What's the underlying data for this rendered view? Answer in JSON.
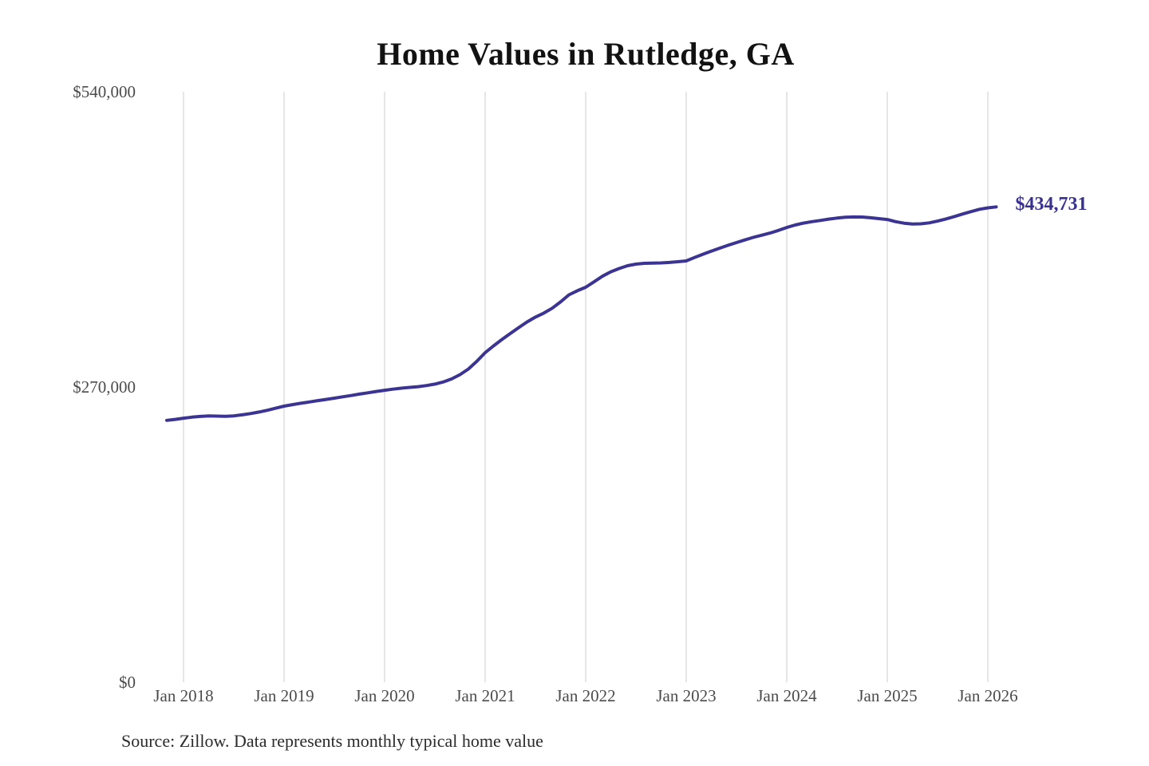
{
  "chart": {
    "title": "Home Values in Rutledge, GA",
    "annotation": "$434,731",
    "source": "Source: Zillow. Data represents monthly typical home value"
  },
  "colors": {
    "line": "#3b3493",
    "annotation": "#39318f",
    "grid": "#cccccc",
    "title": "#121212",
    "tick_label": "#4b4b4b",
    "source": "#2b2b2b",
    "background": "#ffffff"
  },
  "chart_data": {
    "type": "line",
    "title": "Home Values in Rutledge, GA",
    "xlabel": "",
    "ylabel": "",
    "ylim": [
      0,
      540000
    ],
    "x_range_months": [
      "2017-11",
      "2026-02"
    ],
    "grid": "vertical-only",
    "legend": "none",
    "y_ticks": [
      {
        "label": "$540,000",
        "value": 540000
      },
      {
        "label": "$270,000",
        "value": 270000
      },
      {
        "label": "$0",
        "value": 0
      }
    ],
    "x_ticks": [
      "Jan 2018",
      "Jan 2019",
      "Jan 2020",
      "Jan 2021",
      "Jan 2022",
      "Jan 2023",
      "Jan 2024",
      "Jan 2025",
      "Jan 2026"
    ],
    "last_value": 434731,
    "last_value_label": "$434,731",
    "series": [
      {
        "name": "Monthly typical home value",
        "months": [
          "2017-11",
          "2017-12",
          "2018-01",
          "2018-02",
          "2018-03",
          "2018-04",
          "2018-05",
          "2018-06",
          "2018-07",
          "2018-08",
          "2018-09",
          "2018-10",
          "2018-11",
          "2018-12",
          "2019-01",
          "2019-02",
          "2019-03",
          "2019-04",
          "2019-05",
          "2019-06",
          "2019-07",
          "2019-08",
          "2019-09",
          "2019-10",
          "2019-11",
          "2019-12",
          "2020-01",
          "2020-02",
          "2020-03",
          "2020-04",
          "2020-05",
          "2020-06",
          "2020-07",
          "2020-08",
          "2020-09",
          "2020-10",
          "2020-11",
          "2020-12",
          "2021-01",
          "2021-02",
          "2021-03",
          "2021-04",
          "2021-05",
          "2021-06",
          "2021-07",
          "2021-08",
          "2021-09",
          "2021-10",
          "2021-11",
          "2021-12",
          "2022-01",
          "2022-02",
          "2022-03",
          "2022-04",
          "2022-05",
          "2022-06",
          "2022-07",
          "2022-08",
          "2022-09",
          "2022-10",
          "2022-11",
          "2022-12",
          "2023-01",
          "2023-02",
          "2023-03",
          "2023-04",
          "2023-05",
          "2023-06",
          "2023-07",
          "2023-08",
          "2023-09",
          "2023-10",
          "2023-11",
          "2023-12",
          "2024-01",
          "2024-02",
          "2024-03",
          "2024-04",
          "2024-05",
          "2024-06",
          "2024-07",
          "2024-08",
          "2024-09",
          "2024-10",
          "2024-11",
          "2024-12",
          "2025-01",
          "2025-02",
          "2025-03",
          "2025-04",
          "2025-05",
          "2025-06",
          "2025-07",
          "2025-08",
          "2025-09",
          "2025-10",
          "2025-11",
          "2025-12",
          "2026-01",
          "2026-02"
        ],
        "values": [
          239500,
          240400,
          241500,
          242400,
          243100,
          243500,
          243400,
          243200,
          243600,
          244500,
          245700,
          247100,
          248700,
          250600,
          252500,
          253900,
          255100,
          256300,
          257500,
          258600,
          259800,
          261000,
          262200,
          263500,
          264700,
          265900,
          267000,
          268000,
          268900,
          269600,
          270300,
          271300,
          272600,
          274600,
          277400,
          281300,
          286400,
          293400,
          301400,
          307600,
          313400,
          318900,
          324300,
          329500,
          333900,
          337600,
          342000,
          347800,
          354300,
          358000,
          361200,
          366200,
          371300,
          375400,
          378400,
          380900,
          382400,
          383100,
          383300,
          383500,
          383900,
          384600,
          385300,
          388400,
          391400,
          394300,
          397000,
          399600,
          402100,
          404500,
          406800,
          408800,
          410800,
          413200,
          415900,
          418100,
          419900,
          421200,
          422300,
          423500,
          424500,
          425200,
          425500,
          425400,
          424800,
          424000,
          423200,
          421200,
          419800,
          419000,
          419200,
          420100,
          421700,
          423700,
          425900,
          428200,
          430400,
          432500,
          433800,
          434731
        ]
      }
    ]
  }
}
